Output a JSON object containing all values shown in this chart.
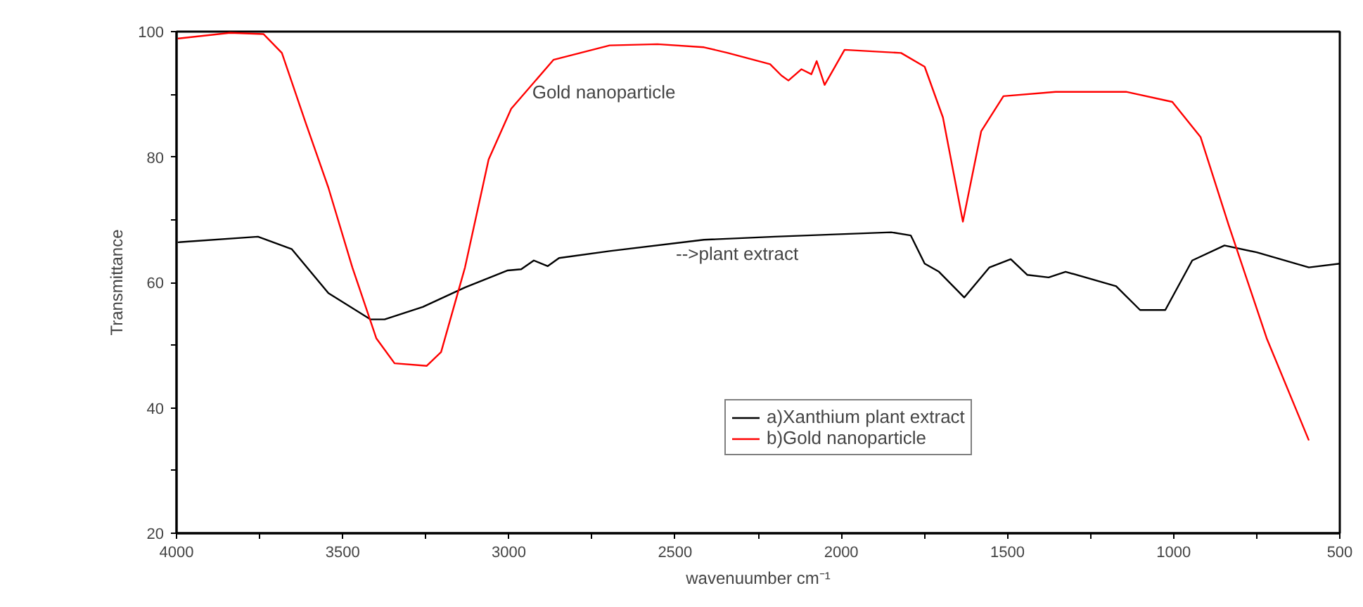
{
  "chart_data": {
    "type": "line",
    "xlabel": "wavenuumber cm⁻¹",
    "ylabel": "Transmittance",
    "xlim": [
      4000,
      500
    ],
    "ylim": [
      20,
      100
    ],
    "xticks": [
      4000,
      {
        "value": 3750,
        "label": null
      },
      3500,
      {
        "value": 3250,
        "label": null
      },
      3000,
      {
        "value": 2750,
        "label": null
      },
      2500,
      {
        "value": 2250,
        "label": null
      },
      2000,
      {
        "value": 1750,
        "label": null
      },
      1500,
      {
        "value": 1250,
        "label": null
      },
      1000,
      {
        "value": 750,
        "label": null
      },
      500
    ],
    "yticks": [
      20,
      {
        "value": 30,
        "label": null
      },
      40,
      {
        "value": 50,
        "label": null
      },
      60,
      {
        "value": 70,
        "label": null
      },
      80,
      {
        "value": 90,
        "label": null
      },
      100
    ],
    "grid": false,
    "legend": "bottom right",
    "marker": "none",
    "line_style": "solid",
    "series": [
      {
        "name": "a)Xanthium plant extract",
        "color": "#000000",
        "x": [
          3996,
          3755,
          3653,
          3543,
          3416,
          3374,
          3259,
          3132,
          3005,
          2963,
          2925,
          2883,
          2849,
          2697,
          2413,
          2201,
          1850,
          1791,
          1749,
          1706,
          1630,
          1554,
          1490,
          1440,
          1376,
          1325,
          1173,
          1101,
          1025,
          944,
          847,
          750,
          593,
          500
        ],
        "values": [
          66.4,
          67.3,
          65.3,
          58.3,
          54.1,
          54.1,
          56.1,
          59.2,
          61.9,
          62.1,
          63.5,
          62.6,
          63.9,
          65.0,
          66.8,
          67.3,
          68.0,
          67.5,
          63.0,
          61.7,
          57.6,
          62.4,
          63.7,
          61.2,
          60.8,
          61.7,
          59.4,
          55.6,
          55.6,
          63.5,
          65.9,
          64.8,
          62.4,
          63.0
        ]
      },
      {
        "name": "b)Gold nanoparticle",
        "color": "#ff0000",
        "x": [
          3996,
          3839,
          3738,
          3683,
          3611,
          3543,
          3471,
          3399,
          3344,
          3247,
          3204,
          3132,
          3061,
          2993,
          2866,
          2697,
          2553,
          2413,
          2341,
          2214,
          2180,
          2159,
          2120,
          2090,
          2074,
          2050,
          1990,
          1820,
          1749,
          1694,
          1634,
          1579,
          1512,
          1355,
          1143,
          1004,
          919,
          834,
          720,
          593
        ],
        "values": [
          98.9,
          99.8,
          99.6,
          96.6,
          85.4,
          75.1,
          62.4,
          51.1,
          47.1,
          46.7,
          48.9,
          62.4,
          79.6,
          87.7,
          95.5,
          97.8,
          98.0,
          97.5,
          96.6,
          94.8,
          93.0,
          92.2,
          94.0,
          93.2,
          95.3,
          91.5,
          97.1,
          96.6,
          94.4,
          86.3,
          69.7,
          84.1,
          89.7,
          90.4,
          90.4,
          88.8,
          83.2,
          69.1,
          51.1,
          34.8
        ]
      }
    ],
    "annotations": [
      {
        "text": "Gold nanoparticle",
        "x": 2930,
        "y": 90.4
      },
      "-->plant extract"
    ]
  }
}
